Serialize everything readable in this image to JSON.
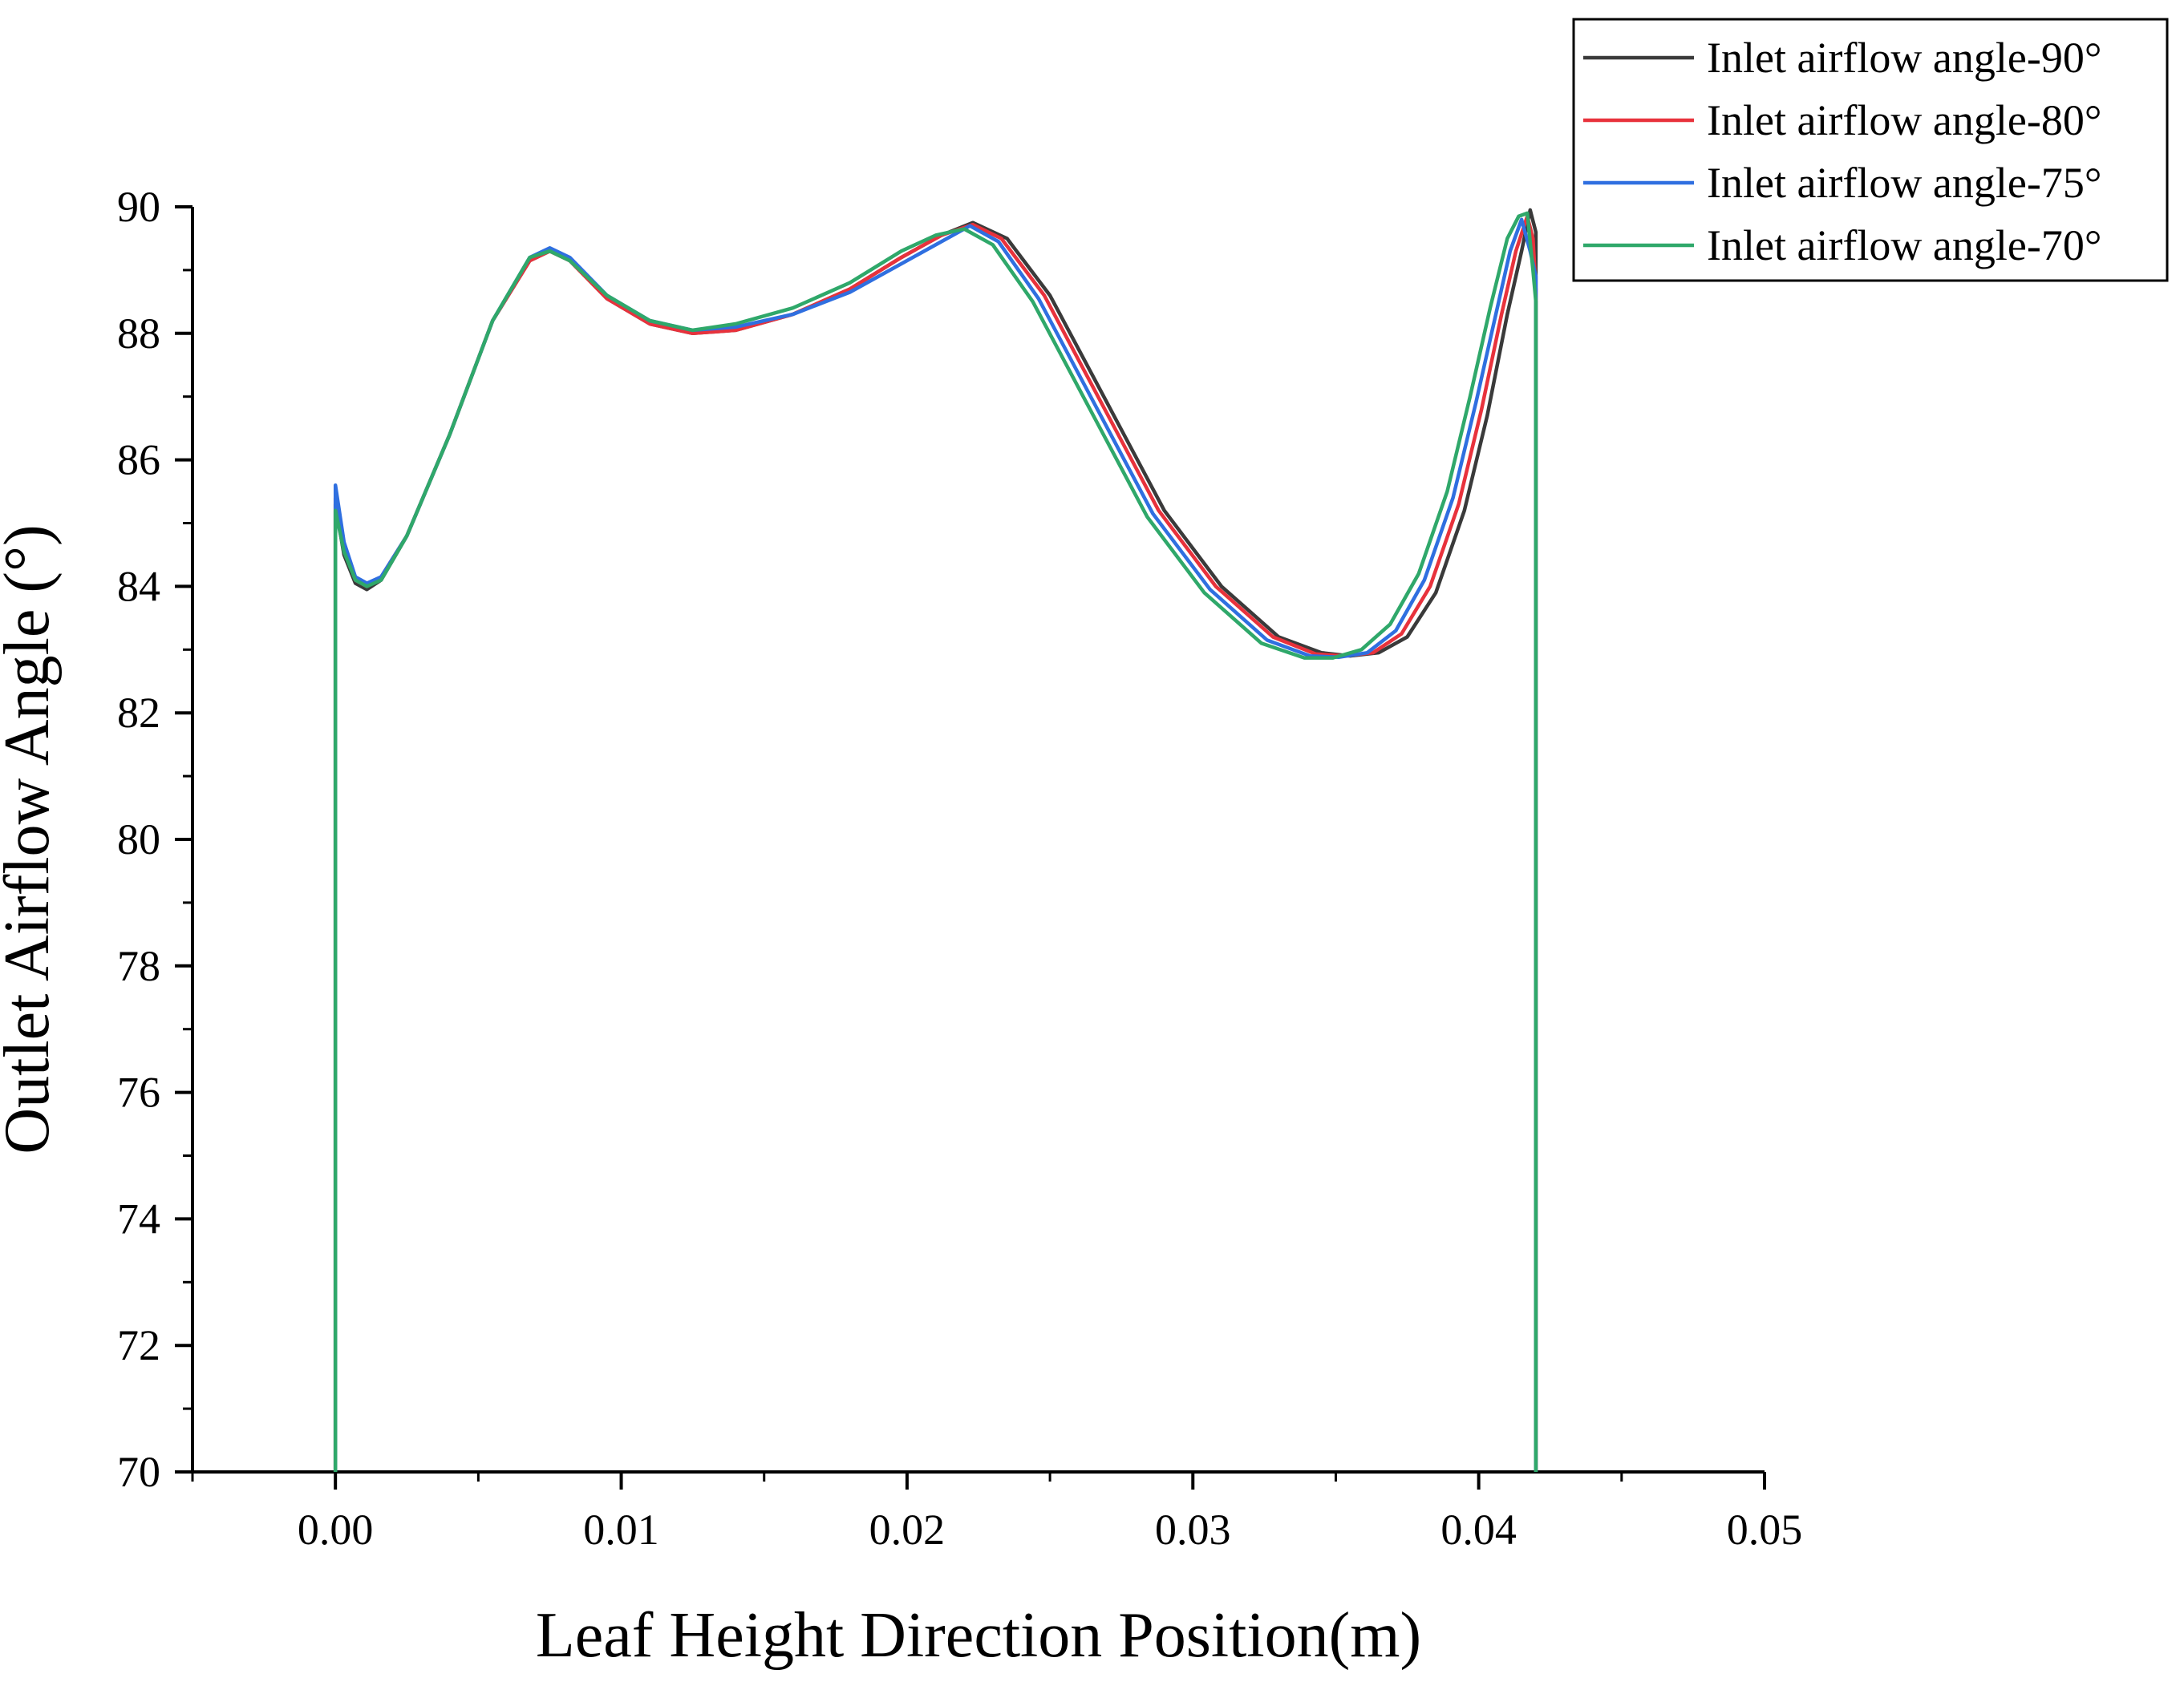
{
  "chart_data": {
    "type": "line",
    "title": "",
    "xlabel": "Leaf Height Direction Position(m)",
    "ylabel": "Outlet Airflow Angle (°)",
    "xlim": [
      -0.005,
      0.05
    ],
    "ylim": [
      70,
      90
    ],
    "x_ticks": [
      0.0,
      0.01,
      0.02,
      0.03,
      0.04,
      0.05
    ],
    "x_tick_labels": [
      "0.00",
      "0.01",
      "0.02",
      "0.03",
      "0.04",
      "0.05"
    ],
    "y_ticks": [
      70,
      72,
      74,
      76,
      78,
      80,
      82,
      84,
      86,
      88,
      90
    ],
    "y_tick_labels": [
      "70",
      "72",
      "74",
      "76",
      "78",
      "80",
      "82",
      "84",
      "86",
      "88",
      "90"
    ],
    "grid": false,
    "legend_position": "top-right",
    "series": [
      {
        "name": "Inlet airflow angle-90°",
        "color": "#3a3a3a",
        "x": [
          0.0,
          0.0,
          0.0003,
          0.0007,
          0.0011,
          0.0016,
          0.0025,
          0.004,
          0.0055,
          0.0068,
          0.0075,
          0.0082,
          0.0095,
          0.011,
          0.0125,
          0.014,
          0.016,
          0.018,
          0.0198,
          0.0212,
          0.0223,
          0.0235,
          0.025,
          0.027,
          0.029,
          0.031,
          0.033,
          0.0345,
          0.0355,
          0.0365,
          0.0375,
          0.0385,
          0.0395,
          0.0403,
          0.041,
          0.0415,
          0.0418,
          0.042,
          0.042,
          0.042
        ],
        "values": [
          70.0,
          85.3,
          84.5,
          84.05,
          83.95,
          84.1,
          84.8,
          86.4,
          88.2,
          89.15,
          89.3,
          89.15,
          88.55,
          88.15,
          88.0,
          88.05,
          88.3,
          88.7,
          89.2,
          89.55,
          89.75,
          89.5,
          88.6,
          86.9,
          85.2,
          84.0,
          83.2,
          82.95,
          82.9,
          82.95,
          83.2,
          83.9,
          85.2,
          86.7,
          88.3,
          89.3,
          89.95,
          89.6,
          88.6,
          70.0
        ]
      },
      {
        "name": "Inlet airflow angle-80°",
        "color": "#e8323c",
        "x": [
          0.0,
          0.0,
          0.0003,
          0.0007,
          0.0011,
          0.0016,
          0.0025,
          0.004,
          0.0055,
          0.0068,
          0.0075,
          0.0082,
          0.0095,
          0.011,
          0.0125,
          0.014,
          0.016,
          0.018,
          0.0198,
          0.0212,
          0.0223,
          0.0233,
          0.0248,
          0.0268,
          0.0288,
          0.0308,
          0.0328,
          0.0343,
          0.0353,
          0.0363,
          0.0373,
          0.0383,
          0.0393,
          0.0401,
          0.0408,
          0.0413,
          0.0417,
          0.0419,
          0.042,
          0.042
        ],
        "values": [
          70.0,
          85.4,
          84.6,
          84.1,
          84.0,
          84.15,
          84.8,
          86.4,
          88.2,
          89.15,
          89.3,
          89.15,
          88.55,
          88.15,
          88.0,
          88.05,
          88.3,
          88.7,
          89.2,
          89.55,
          89.72,
          89.5,
          88.6,
          86.9,
          85.2,
          84.0,
          83.2,
          82.93,
          82.9,
          82.95,
          83.25,
          84.0,
          85.3,
          86.8,
          88.3,
          89.3,
          89.85,
          89.5,
          88.7,
          70.0
        ]
      },
      {
        "name": "Inlet airflow angle-75°",
        "color": "#2f6fe0",
        "x": [
          0.0,
          0.0,
          0.0003,
          0.0007,
          0.0011,
          0.0016,
          0.0025,
          0.004,
          0.0055,
          0.0068,
          0.0075,
          0.0082,
          0.0095,
          0.011,
          0.0125,
          0.014,
          0.016,
          0.018,
          0.0198,
          0.0212,
          0.0222,
          0.0232,
          0.0246,
          0.0266,
          0.0286,
          0.0306,
          0.0326,
          0.0341,
          0.0351,
          0.0361,
          0.0371,
          0.0381,
          0.0391,
          0.0399,
          0.0406,
          0.0411,
          0.0415,
          0.0418,
          0.042,
          0.042
        ],
        "values": [
          70.0,
          85.6,
          84.7,
          84.15,
          84.05,
          84.15,
          84.8,
          86.4,
          88.2,
          89.2,
          89.35,
          89.2,
          88.6,
          88.2,
          88.05,
          88.1,
          88.3,
          88.65,
          89.1,
          89.45,
          89.7,
          89.45,
          88.55,
          86.85,
          85.15,
          83.95,
          83.15,
          82.9,
          82.88,
          82.95,
          83.3,
          84.1,
          85.4,
          86.9,
          88.3,
          89.3,
          89.8,
          89.3,
          88.9,
          70.0
        ]
      },
      {
        "name": "Inlet airflow angle-70°",
        "color": "#2fa86a",
        "x": [
          0.0,
          0.0,
          0.0003,
          0.0007,
          0.0011,
          0.0016,
          0.0025,
          0.004,
          0.0055,
          0.0068,
          0.0075,
          0.0082,
          0.0095,
          0.011,
          0.0125,
          0.014,
          0.016,
          0.018,
          0.0198,
          0.021,
          0.022,
          0.023,
          0.0244,
          0.0264,
          0.0284,
          0.0304,
          0.0324,
          0.0339,
          0.0349,
          0.0359,
          0.0369,
          0.0379,
          0.0389,
          0.0397,
          0.0404,
          0.041,
          0.0414,
          0.0417,
          0.0419,
          0.042,
          0.042
        ],
        "values": [
          70.0,
          85.2,
          84.55,
          84.1,
          84.0,
          84.1,
          84.8,
          86.4,
          88.2,
          89.2,
          89.3,
          89.15,
          88.6,
          88.2,
          88.05,
          88.15,
          88.4,
          88.8,
          89.3,
          89.55,
          89.65,
          89.4,
          88.5,
          86.8,
          85.1,
          83.9,
          83.1,
          82.87,
          82.87,
          83.0,
          83.4,
          84.2,
          85.5,
          87.0,
          88.4,
          89.5,
          89.85,
          89.9,
          89.0,
          88.5,
          70.0
        ]
      }
    ]
  }
}
